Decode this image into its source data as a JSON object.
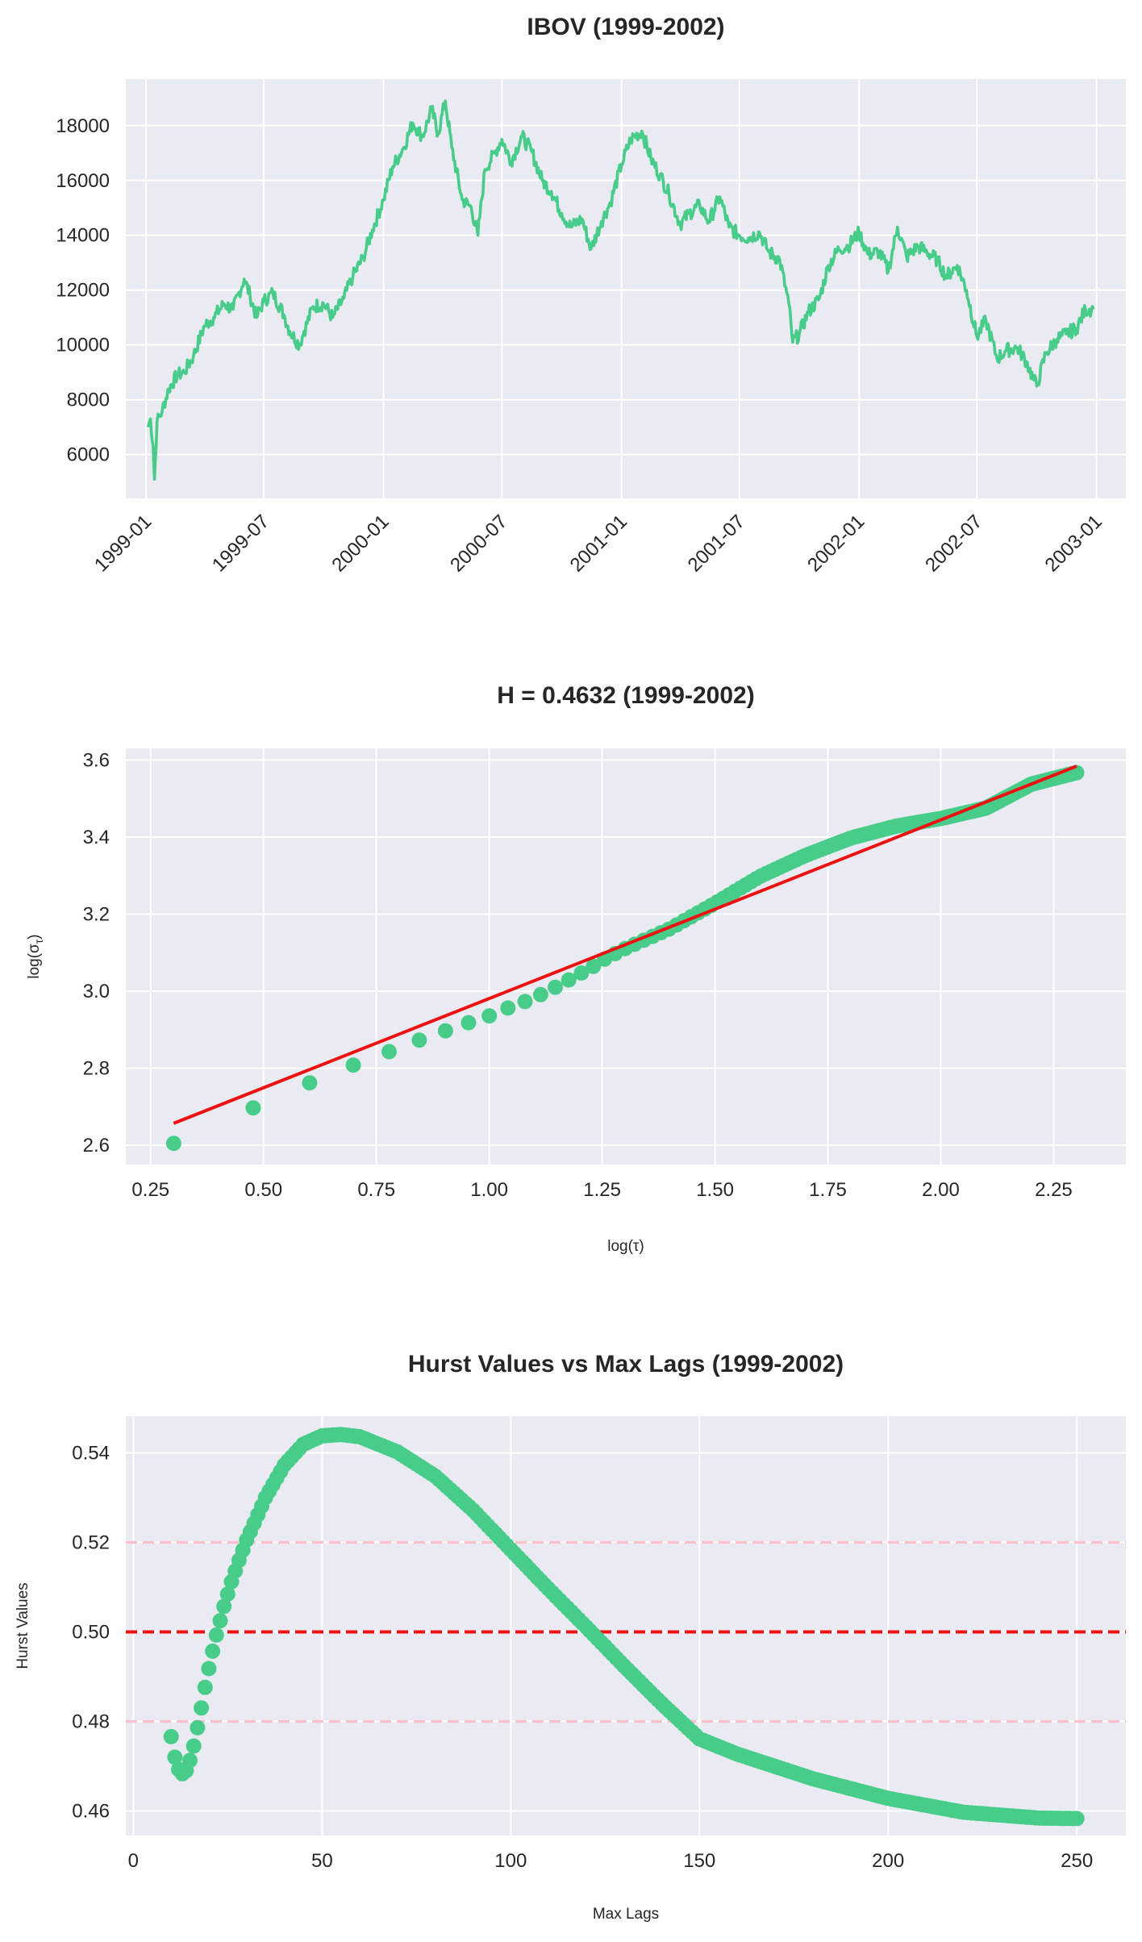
{
  "chart_data": [
    {
      "type": "line",
      "title": "IBOV (1999-2002)",
      "xlabel": "",
      "ylabel": "",
      "x_ticks": [
        "1999-01",
        "1999-07",
        "2000-01",
        "2000-07",
        "2001-01",
        "2001-07",
        "2002-01",
        "2002-07",
        "2003-01"
      ],
      "y_ticks": [
        6000,
        8000,
        10000,
        12000,
        14000,
        16000,
        18000
      ],
      "xlim": [
        "1998-12-01",
        "2003-02-15"
      ],
      "ylim": [
        4400,
        19700
      ],
      "grid": true,
      "color": "#48cc8a",
      "series": [
        {
          "x": [
            "1999-01-04",
            "1999-01-08",
            "1999-01-12",
            "1999-01-14",
            "1999-01-18",
            "1999-01-26",
            "1999-02-05",
            "1999-02-18",
            "1999-03-01",
            "1999-03-15",
            "1999-04-01",
            "1999-04-15",
            "1999-05-01",
            "1999-05-15",
            "1999-06-01",
            "1999-06-10",
            "1999-06-20",
            "1999-07-01",
            "1999-07-15",
            "1999-08-01",
            "1999-08-10",
            "1999-08-25",
            "1999-09-01",
            "1999-09-15",
            "1999-10-01",
            "1999-10-15",
            "1999-11-01",
            "1999-11-15",
            "1999-12-01",
            "1999-12-15",
            "2000-01-01",
            "2000-01-15",
            "2000-02-01",
            "2000-02-15",
            "2000-03-01",
            "2000-03-15",
            "2000-03-25",
            "2000-04-05",
            "2000-04-15",
            "2000-05-01",
            "2000-05-15",
            "2000-05-25",
            "2000-06-05",
            "2000-06-20",
            "2000-07-01",
            "2000-07-15",
            "2000-08-01",
            "2000-08-15",
            "2000-09-01",
            "2000-09-15",
            "2000-10-01",
            "2000-10-15",
            "2000-11-01",
            "2000-11-15",
            "2000-12-01",
            "2000-12-15",
            "2001-01-01",
            "2001-01-15",
            "2001-02-01",
            "2001-02-15",
            "2001-03-01",
            "2001-03-15",
            "2001-04-01",
            "2001-04-15",
            "2001-05-01",
            "2001-05-15",
            "2001-06-01",
            "2001-06-15",
            "2001-07-01",
            "2001-07-15",
            "2001-08-01",
            "2001-08-15",
            "2001-09-01",
            "2001-09-15",
            "2001-09-21",
            "2001-10-01",
            "2001-10-15",
            "2001-11-01",
            "2001-11-15",
            "2001-12-01",
            "2001-12-15",
            "2002-01-01",
            "2002-01-15",
            "2002-02-01",
            "2002-02-15",
            "2002-03-01",
            "2002-03-15",
            "2002-04-01",
            "2002-04-15",
            "2002-05-01",
            "2002-05-15",
            "2002-06-01",
            "2002-06-15",
            "2002-07-01",
            "2002-07-15",
            "2002-08-01",
            "2002-08-15",
            "2002-09-01",
            "2002-09-15",
            "2002-09-25",
            "2002-10-01",
            "2002-10-15",
            "2002-11-01",
            "2002-11-15",
            "2002-12-01",
            "2002-12-15",
            "2002-12-27"
          ],
          "y": [
            7000,
            7300,
            6300,
            5100,
            7200,
            7600,
            8400,
            8900,
            9000,
            9600,
            10700,
            11000,
            11500,
            11300,
            12400,
            11800,
            11000,
            11600,
            11900,
            11100,
            10500,
            10000,
            10500,
            11400,
            11500,
            11000,
            11700,
            12500,
            13200,
            14200,
            15300,
            16500,
            17200,
            18100,
            17600,
            18600,
            17700,
            18900,
            17200,
            15300,
            15000,
            14000,
            16400,
            17000,
            17500,
            16700,
            17600,
            17100,
            16000,
            15600,
            14800,
            14300,
            14600,
            13500,
            14500,
            15200,
            16600,
            17500,
            17800,
            16800,
            16200,
            15500,
            14400,
            14800,
            15100,
            14500,
            15400,
            14300,
            14000,
            13900,
            14100,
            13400,
            13100,
            11500,
            10100,
            10400,
            11200,
            11700,
            12900,
            13500,
            13600,
            14100,
            13300,
            13400,
            12700,
            14300,
            13200,
            13600,
            13400,
            13100,
            12500,
            12900,
            12000,
            10300,
            10900,
            9500,
            9800,
            9900,
            9400,
            8800,
            8500,
            9700,
            10200,
            10400,
            10600,
            11300,
            11300
          ]
        }
      ]
    },
    {
      "type": "scatter",
      "title": "H = 0.4632 (1999-2002)",
      "xlabel": "log(τ)",
      "ylabel": "log(σ_τ)",
      "ylabel_main": "log(σ",
      "ylabel_sub": "τ",
      "ylabel_close": ")",
      "x_ticks": [
        "0.25",
        "0.50",
        "0.75",
        "1.00",
        "1.25",
        "1.50",
        "1.75",
        "2.00",
        "2.25"
      ],
      "y_ticks": [
        "2.6",
        "2.8",
        "3.0",
        "3.2",
        "3.4",
        "3.6"
      ],
      "xlim": [
        0.195,
        2.41
      ],
      "ylim": [
        2.55,
        3.63
      ],
      "grid": true,
      "color": "#48cc8a",
      "points_lag_start": 2,
      "points_lag_end": 200,
      "points_lag_step": 1,
      "profile_x": [
        0.301,
        0.477,
        0.602,
        0.699,
        0.778,
        0.845,
        0.903,
        0.954,
        1.0,
        1.041,
        1.079,
        1.114,
        1.146,
        1.176,
        1.204,
        1.23,
        1.255,
        1.3,
        1.4,
        1.5,
        1.6,
        1.7,
        1.8,
        1.9,
        2.0,
        2.1,
        2.2,
        2.3
      ],
      "profile_y": [
        2.605,
        2.697,
        2.762,
        2.808,
        2.843,
        2.873,
        2.897,
        2.918,
        2.936,
        2.956,
        2.973,
        2.991,
        3.01,
        3.029,
        3.047,
        3.064,
        3.083,
        3.11,
        3.162,
        3.228,
        3.298,
        3.352,
        3.397,
        3.428,
        3.448,
        3.475,
        3.537,
        3.567
      ],
      "fit_line": {
        "x": [
          0.301,
          2.301
        ],
        "y": [
          2.657,
          3.584
        ],
        "color": "#ee1111"
      }
    },
    {
      "type": "scatter",
      "title": "Hurst Values vs Max Lags (1999-2002)",
      "xlabel": "Max Lags",
      "ylabel": "Hurst Values",
      "x_ticks": [
        0,
        50,
        100,
        150,
        200,
        250
      ],
      "y_ticks": [
        "0.46",
        "0.48",
        "0.50",
        "0.52",
        "0.54"
      ],
      "xlim": [
        -2,
        263
      ],
      "ylim": [
        0.4545,
        0.5482
      ],
      "grid": true,
      "color": "#48cc8a",
      "x_start": 10,
      "x_end": 250,
      "x_step": 1,
      "profile_x": [
        10,
        11,
        12,
        13,
        14,
        15,
        16,
        17,
        18,
        19,
        20,
        21,
        22,
        24,
        26,
        28,
        30,
        35,
        40,
        45,
        50,
        55,
        60,
        70,
        80,
        90,
        100,
        110,
        120,
        130,
        140,
        150,
        160,
        180,
        200,
        220,
        240,
        250
      ],
      "profile_y": [
        0.4766,
        0.472,
        0.4693,
        0.4683,
        0.469,
        0.4713,
        0.4745,
        0.4786,
        0.483,
        0.4876,
        0.4918,
        0.4957,
        0.4993,
        0.5057,
        0.5112,
        0.516,
        0.5205,
        0.53,
        0.5373,
        0.5419,
        0.5438,
        0.5441,
        0.5436,
        0.5402,
        0.5348,
        0.5272,
        0.5184,
        0.5096,
        0.5011,
        0.4924,
        0.484,
        0.4761,
        0.4727,
        0.4672,
        0.4628,
        0.4597,
        0.4584,
        0.4583
      ],
      "hlines": [
        {
          "y": 0.5,
          "color": "#ee1111",
          "style": "dashed"
        },
        {
          "y": 0.52,
          "color": "#ffc0cb",
          "style": "dashed"
        },
        {
          "y": 0.48,
          "color": "#ffc0cb",
          "style": "dashed"
        }
      ]
    }
  ]
}
